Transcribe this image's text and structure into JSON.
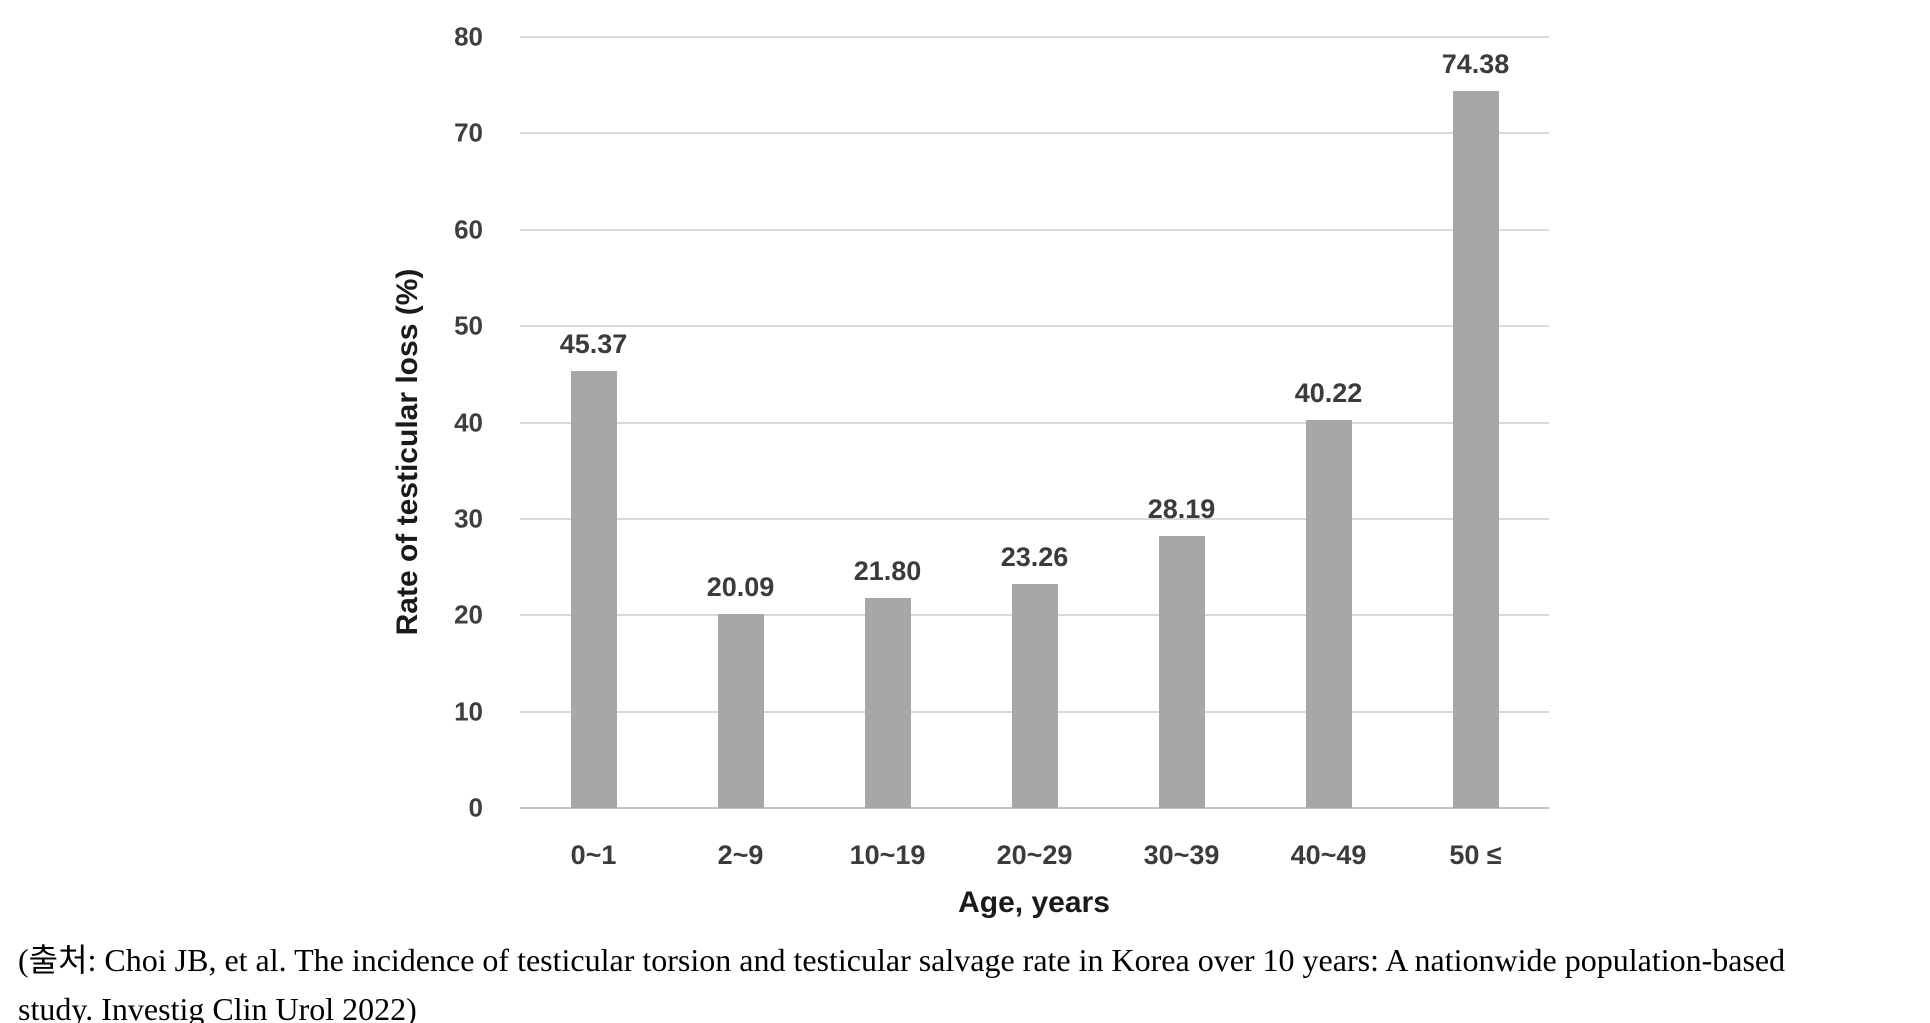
{
  "chart_data": {
    "type": "bar",
    "categories": [
      "0~1",
      "2~9",
      "10~19",
      "20~29",
      "30~39",
      "40~49",
      "50 ≤"
    ],
    "values": [
      45.37,
      20.09,
      21.8,
      23.26,
      28.19,
      40.22,
      74.38
    ],
    "value_labels": [
      "45.37",
      "20.09",
      "21.80",
      "23.26",
      "28.19",
      "40.22",
      "74.38"
    ],
    "title": "",
    "xlabel": "Age, years",
    "ylabel": "Rate of testicular loss (%)",
    "ylim": [
      0,
      80
    ],
    "yticks": [
      0,
      10,
      20,
      30,
      40,
      50,
      60,
      70,
      80
    ],
    "grid": true,
    "legend": false,
    "colors": {
      "bar": "#a7a7a7",
      "gridline": "#d9d9d9",
      "axis_line": "#c3c3c3",
      "tick_label": "#3f3f3f",
      "data_label": "#3b3b3b",
      "axis_title": "#1a1a1a"
    }
  },
  "caption": {
    "lines": [
      "(출처: Choi JB, et al. The incidence of testicular torsion and testicular salvage rate in Korea over 10 years: A nationwide population-based",
      "study. Investig Clin Urol 2022)"
    ]
  }
}
